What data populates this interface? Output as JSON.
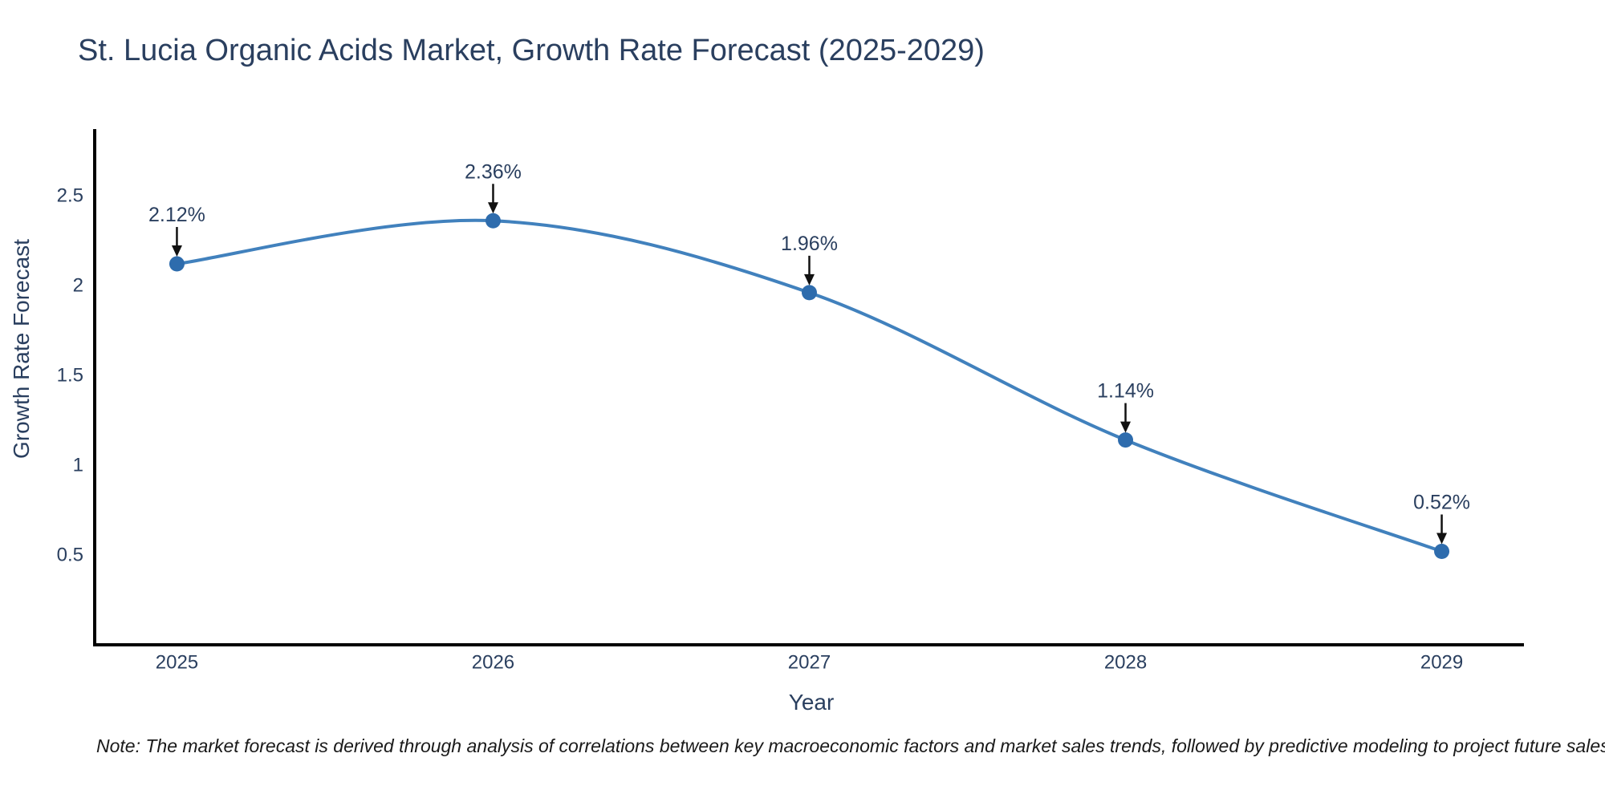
{
  "page": {
    "background": "#ffffff"
  },
  "header": {
    "title": "St. Lucia Organic Acids Market, Growth Rate Forecast (2025-2029)"
  },
  "chart_data": {
    "type": "line",
    "title": "St. Lucia Organic Acids Market, Growth Rate Forecast (2025-2029)",
    "xlabel": "Year",
    "ylabel": "Growth Rate Forecast",
    "x": [
      2025,
      2026,
      2027,
      2028,
      2029
    ],
    "x_tick_labels": [
      "2025",
      "2026",
      "2027",
      "2028",
      "2029"
    ],
    "series": [
      {
        "name": "Growth Rate Forecast",
        "values": [
          2.12,
          2.36,
          1.96,
          1.14,
          0.52
        ],
        "point_labels": [
          "2.12%",
          "2.36%",
          "1.96%",
          "1.14%",
          "0.52%"
        ]
      }
    ],
    "y_ticks": [
      0.5,
      1,
      1.5,
      2,
      2.5
    ],
    "y_tick_labels": [
      "0.5",
      "1",
      "1.5",
      "2",
      "2.5"
    ],
    "xlim": [
      2024.74,
      2029.26
    ],
    "ylim": [
      0,
      2.87
    ],
    "grid": false,
    "legend": "none",
    "line_shape": "spline",
    "marker": "circle",
    "annotation_arrows": true,
    "colors": {
      "line": "#4181bd",
      "marker": "#2e6cad",
      "axis": "#000000",
      "text": "#2a3f5f",
      "arrow": "#111111"
    }
  },
  "footnote": {
    "text": "Note: The market forecast is derived through analysis of correlations between key macroeconomic factors and market sales trends, followed by predictive modeling to project future sales"
  }
}
